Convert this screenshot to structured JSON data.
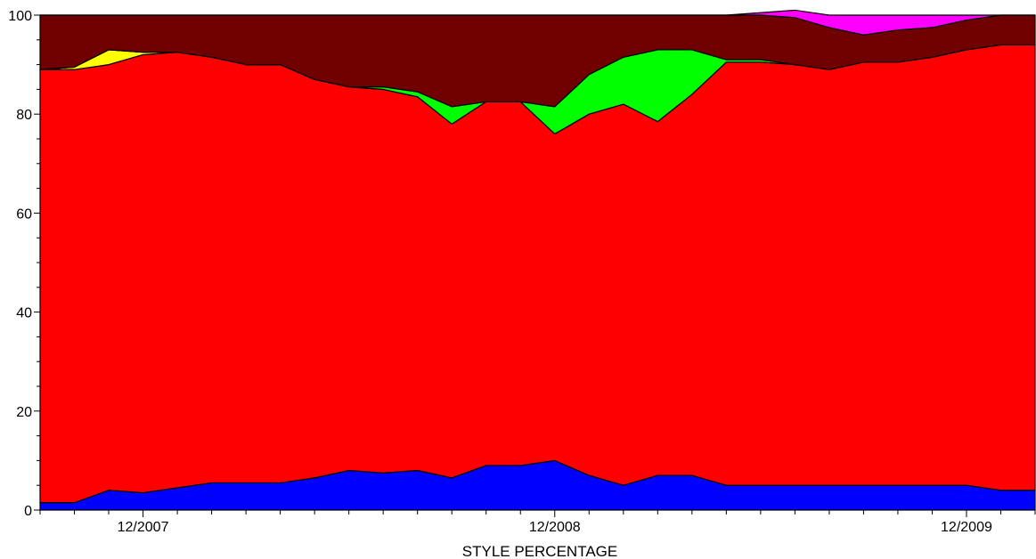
{
  "chart_data": {
    "type": "area",
    "stacked": true,
    "title": "",
    "xlabel": "STYLE PERCENTAGE",
    "ylabel": "",
    "ylim": [
      0,
      100
    ],
    "yticks": [
      0,
      20,
      40,
      60,
      80,
      100
    ],
    "x": [
      "09/2007",
      "10/2007",
      "11/2007",
      "12/2007",
      "01/2008",
      "02/2008",
      "03/2008",
      "04/2008",
      "05/2008",
      "06/2008",
      "07/2008",
      "08/2008",
      "09/2008",
      "10/2008",
      "11/2008",
      "12/2008",
      "01/2009",
      "02/2009",
      "03/2009",
      "04/2009",
      "05/2009",
      "06/2009",
      "07/2009",
      "08/2009",
      "09/2009",
      "10/2009",
      "11/2009",
      "12/2009",
      "01/2010",
      "02/2010"
    ],
    "xtick_labels": [
      "12/2007",
      "12/2008",
      "12/2009"
    ],
    "legend": "none",
    "grid": false,
    "series": [
      {
        "color": "#0000ff",
        "values": [
          1.5,
          1.5,
          4.0,
          3.5,
          4.5,
          5.5,
          5.5,
          5.5,
          6.5,
          8.0,
          7.5,
          8.0,
          6.5,
          9.0,
          9.0,
          10.0,
          7.0,
          5.0,
          7.0,
          7.0,
          5.0,
          5.0,
          5.0,
          5.0,
          5.0,
          5.0,
          5.0,
          5.0,
          4.0,
          4.0
        ]
      },
      {
        "color": "#ff0000",
        "values": [
          87.5,
          87.5,
          86.0,
          88.5,
          88.0,
          86.0,
          84.5,
          84.5,
          80.5,
          77.5,
          77.5,
          75.5,
          71.5,
          73.5,
          73.5,
          66.0,
          73.0,
          77.0,
          71.5,
          77.0,
          85.5,
          85.5,
          85.0,
          84.0,
          85.5,
          85.5,
          86.5,
          88.0,
          90.0,
          90.0
        ]
      },
      {
        "color": "#ffff00",
        "values": [
          0.0,
          0.5,
          3.0,
          0.5,
          0.0,
          0.0,
          0.0,
          0.0,
          0.0,
          0.0,
          0.0,
          0.0,
          0.0,
          0.0,
          0.0,
          0.0,
          0.0,
          0.0,
          0.0,
          0.0,
          0.0,
          0.0,
          0.0,
          0.0,
          0.0,
          0.0,
          0.0,
          0.0,
          0.0,
          0.0
        ]
      },
      {
        "color": "#00ff00",
        "values": [
          0.0,
          0.0,
          0.0,
          0.0,
          0.0,
          0.0,
          0.0,
          0.0,
          0.0,
          0.0,
          0.5,
          1.0,
          3.5,
          0.0,
          0.0,
          5.5,
          8.0,
          9.5,
          14.5,
          9.0,
          0.5,
          0.5,
          0.0,
          0.0,
          0.0,
          0.0,
          0.0,
          0.0,
          0.0,
          0.0
        ]
      },
      {
        "color": "#700000",
        "values": [
          11.0,
          10.5,
          7.0,
          7.5,
          7.5,
          8.5,
          10.0,
          10.0,
          13.0,
          14.5,
          14.5,
          15.5,
          18.5,
          17.5,
          17.5,
          18.5,
          12.0,
          8.5,
          7.0,
          7.0,
          9.0,
          9.0,
          9.5,
          8.5,
          5.5,
          6.5,
          6.0,
          6.0,
          6.0,
          6.0
        ]
      },
      {
        "color": "#ff00ff",
        "values": [
          0.0,
          0.0,
          0.0,
          0.0,
          0.0,
          0.0,
          0.0,
          0.0,
          0.0,
          0.0,
          0.0,
          0.0,
          0.0,
          0.0,
          0.0,
          0.0,
          0.0,
          0.0,
          0.0,
          0.0,
          0.0,
          0.5,
          1.5,
          2.5,
          4.0,
          3.0,
          2.5,
          1.0,
          0.0,
          0.0
        ]
      }
    ]
  }
}
